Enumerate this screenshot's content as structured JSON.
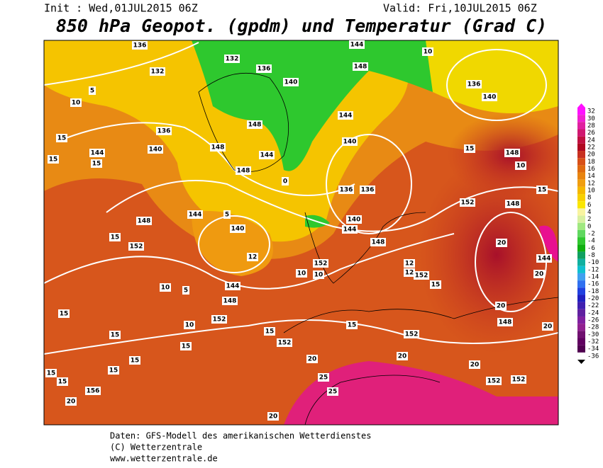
{
  "header": {
    "init": "Init : Wed,01JUL2015 06Z",
    "valid": "Valid: Fri,10JUL2015 06Z",
    "title": "850 hPa Geopot. (gpdm) und Temperatur (Grad C)"
  },
  "colorbar": {
    "labels": [
      32,
      30,
      28,
      26,
      24,
      22,
      20,
      18,
      16,
      14,
      12,
      10,
      8,
      6,
      4,
      2,
      0,
      -2,
      -4,
      -6,
      -8,
      -10,
      -12,
      -14,
      -16,
      -18,
      -20,
      -22,
      -24,
      -26,
      -28,
      -30,
      -32,
      -34,
      -36
    ]
  },
  "map": {
    "labels": [
      "136",
      "132",
      "132",
      "136",
      "140",
      "144",
      "148",
      "136",
      "140",
      "10",
      "10",
      "5",
      "15",
      "15",
      "144",
      "15",
      "136",
      "140",
      "148",
      "148",
      "144",
      "148",
      "144",
      "140",
      "136",
      "136",
      "140",
      "144",
      "148",
      "15",
      "148",
      "10",
      "15",
      "152",
      "148",
      "20",
      "144",
      "20",
      "20",
      "148",
      "20",
      "152",
      "148",
      "144",
      "140",
      "5",
      "144",
      "148",
      "152",
      "10",
      "5",
      "10",
      "15",
      "15",
      "15",
      "15",
      "152",
      "15",
      "152",
      "20",
      "20",
      "25",
      "25",
      "20",
      "152",
      "152",
      "15",
      "15",
      "15",
      "15",
      "156",
      "20",
      "20",
      "15",
      "152",
      "10",
      "10",
      "12",
      "12",
      "152",
      "15",
      "12",
      "0"
    ]
  },
  "footer": {
    "lines": [
      "Daten: GFS-Modell des amerikanischen Wetterdienstes",
      "(C) Wetterzentrale",
      "www.wetterzentrale.de"
    ]
  }
}
